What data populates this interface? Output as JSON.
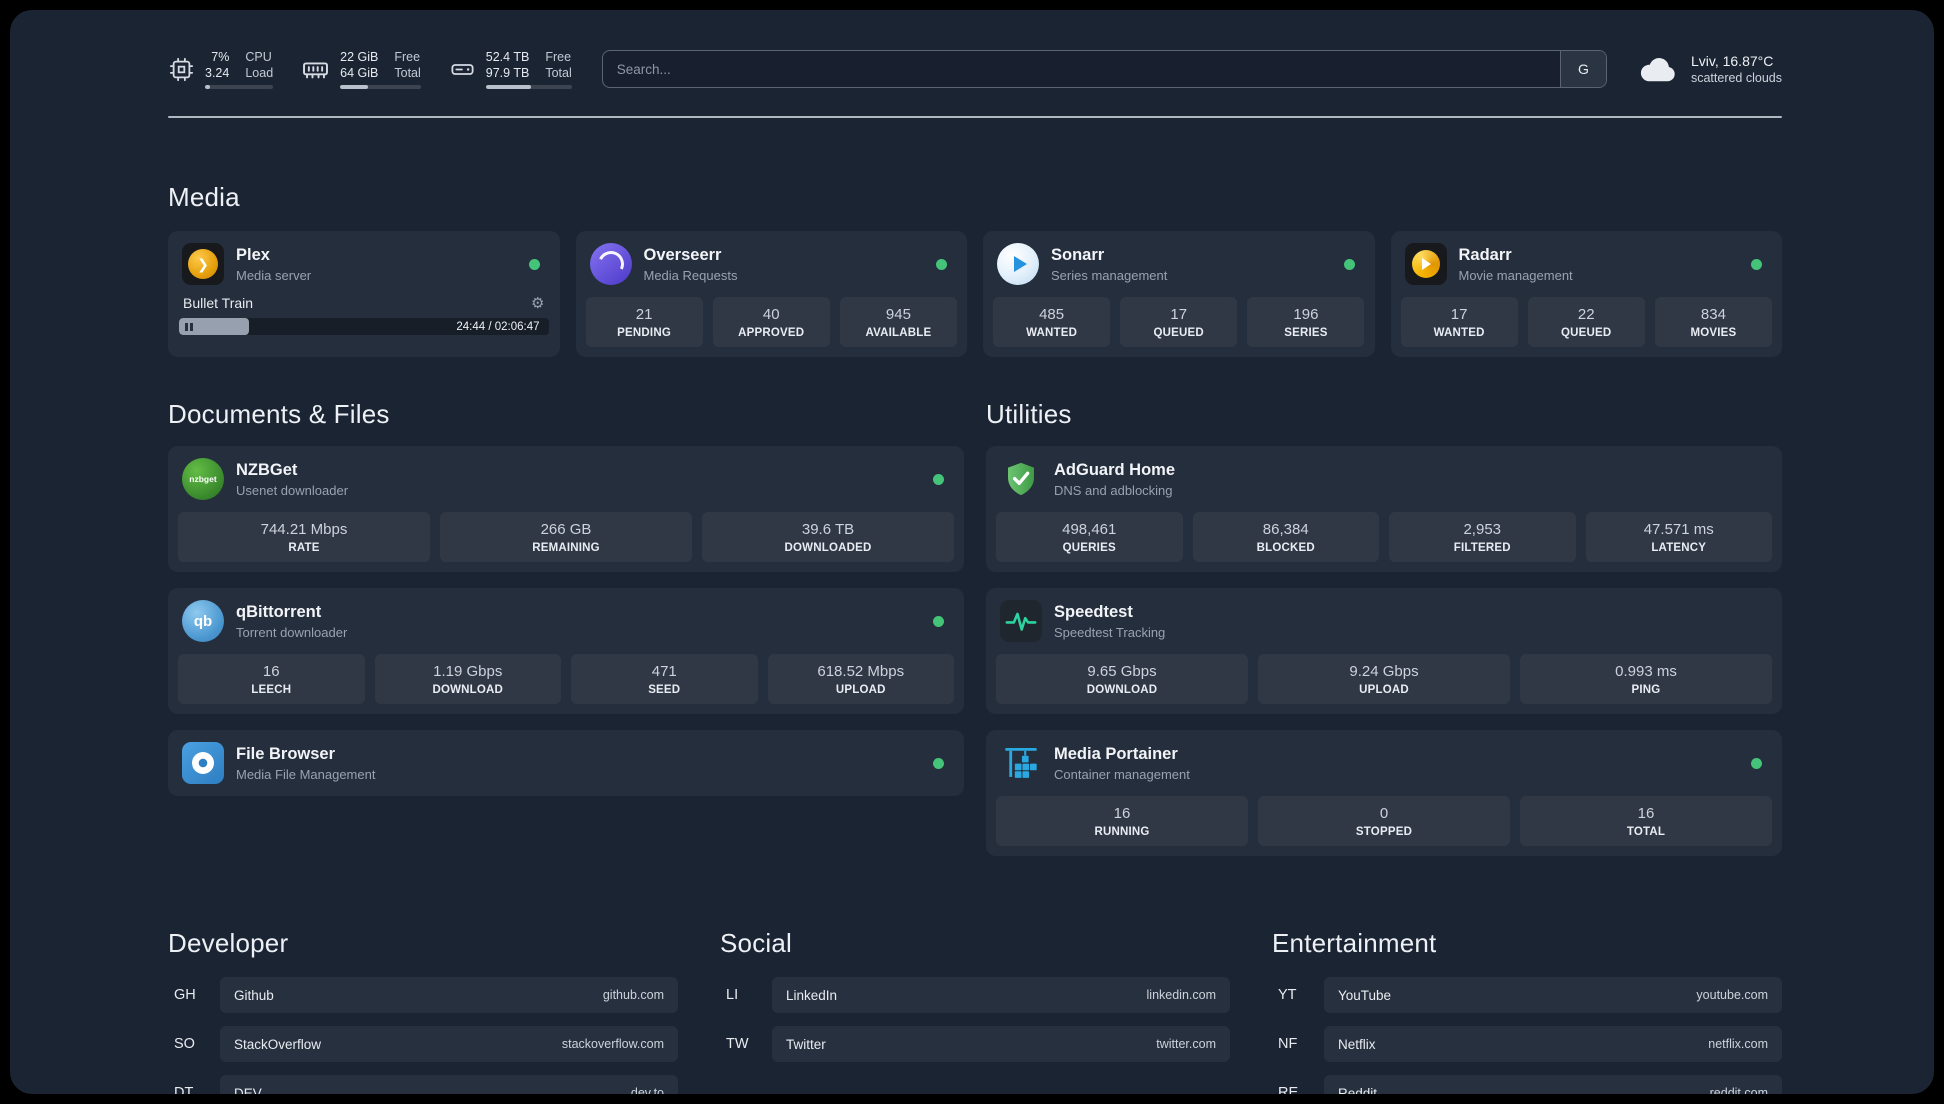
{
  "topbar": {
    "cpu": {
      "value1": "7%",
      "value2": "3.24",
      "label1": "CPU",
      "label2": "Load",
      "progress": 7
    },
    "memory": {
      "value1": "22 GiB",
      "value2": "64 GiB",
      "label1": "Free",
      "label2": "Total",
      "progress": 34
    },
    "disk": {
      "value1": "52.4 TB",
      "value2": "97.9 TB",
      "label1": "Free",
      "label2": "Total",
      "progress": 53
    },
    "search": {
      "placeholder": "Search...",
      "button_label": "G"
    },
    "weather": {
      "location": "Lviv, 16.87°C",
      "condition": "scattered clouds"
    }
  },
  "icons": {
    "gear": "⚙",
    "plex_chevron": "❯",
    "qb_text": "qb",
    "nzbget_text": "nzbget"
  },
  "colors": {
    "status_online": "#43c478"
  },
  "sections": {
    "media": {
      "title": "Media",
      "cards": [
        {
          "name": "Plex",
          "subtitle": "Media server",
          "status": "online",
          "player": {
            "title": "Bullet Train",
            "time": "24:44 / 02:06:47",
            "progress": 19
          }
        },
        {
          "name": "Overseerr",
          "subtitle": "Media Requests",
          "status": "online",
          "stats": [
            {
              "value": "21",
              "label": "PENDING"
            },
            {
              "value": "40",
              "label": "APPROVED"
            },
            {
              "value": "945",
              "label": "AVAILABLE"
            }
          ]
        },
        {
          "name": "Sonarr",
          "subtitle": "Series management",
          "status": "online",
          "stats": [
            {
              "value": "485",
              "label": "WANTED"
            },
            {
              "value": "17",
              "label": "QUEUED"
            },
            {
              "value": "196",
              "label": "SERIES"
            }
          ]
        },
        {
          "name": "Radarr",
          "subtitle": "Movie management",
          "status": "online",
          "stats": [
            {
              "value": "17",
              "label": "WANTED"
            },
            {
              "value": "22",
              "label": "QUEUED"
            },
            {
              "value": "834",
              "label": "MOVIES"
            }
          ]
        }
      ]
    },
    "documents": {
      "title": "Documents & Files",
      "cards": [
        {
          "name": "NZBGet",
          "subtitle": "Usenet downloader",
          "status": "online",
          "stats": [
            {
              "value": "744.21 Mbps",
              "label": "RATE"
            },
            {
              "value": "266 GB",
              "label": "REMAINING"
            },
            {
              "value": "39.6 TB",
              "label": "DOWNLOADED"
            }
          ]
        },
        {
          "name": "qBittorrent",
          "subtitle": "Torrent downloader",
          "status": "online",
          "stats": [
            {
              "value": "16",
              "label": "LEECH"
            },
            {
              "value": "1.19 Gbps",
              "label": "DOWNLOAD"
            },
            {
              "value": "471",
              "label": "SEED"
            },
            {
              "value": "618.52 Mbps",
              "label": "UPLOAD"
            }
          ]
        },
        {
          "name": "File Browser",
          "subtitle": "Media File Management",
          "status": "online"
        }
      ]
    },
    "utilities": {
      "title": "Utilities",
      "cards": [
        {
          "name": "AdGuard Home",
          "subtitle": "DNS and adblocking",
          "stats": [
            {
              "value": "498,461",
              "label": "QUERIES"
            },
            {
              "value": "86,384",
              "label": "BLOCKED"
            },
            {
              "value": "2,953",
              "label": "FILTERED"
            },
            {
              "value": "47.571 ms",
              "label": "LATENCY"
            }
          ]
        },
        {
          "name": "Speedtest",
          "subtitle": "Speedtest Tracking",
          "stats": [
            {
              "value": "9.65 Gbps",
              "label": "DOWNLOAD"
            },
            {
              "value": "9.24 Gbps",
              "label": "UPLOAD"
            },
            {
              "value": "0.993 ms",
              "label": "PING"
            }
          ]
        },
        {
          "name": "Media Portainer",
          "subtitle": "Container management",
          "status": "online",
          "stats": [
            {
              "value": "16",
              "label": "RUNNING"
            },
            {
              "value": "0",
              "label": "STOPPED"
            },
            {
              "value": "16",
              "label": "TOTAL"
            }
          ]
        }
      ]
    },
    "bookmarks": [
      {
        "title": "Developer",
        "items": [
          {
            "abbr": "GH",
            "name": "Github",
            "url": "github.com"
          },
          {
            "abbr": "SO",
            "name": "StackOverflow",
            "url": "stackoverflow.com"
          },
          {
            "abbr": "DT",
            "name": "DEV",
            "url": "dev.to"
          }
        ]
      },
      {
        "title": "Social",
        "items": [
          {
            "abbr": "LI",
            "name": "LinkedIn",
            "url": "linkedin.com"
          },
          {
            "abbr": "TW",
            "name": "Twitter",
            "url": "twitter.com"
          }
        ]
      },
      {
        "title": "Entertainment",
        "items": [
          {
            "abbr": "YT",
            "name": "YouTube",
            "url": "youtube.com"
          },
          {
            "abbr": "NF",
            "name": "Netflix",
            "url": "netflix.com"
          },
          {
            "abbr": "RE",
            "name": "Reddit",
            "url": "reddit.com"
          }
        ]
      }
    ]
  }
}
